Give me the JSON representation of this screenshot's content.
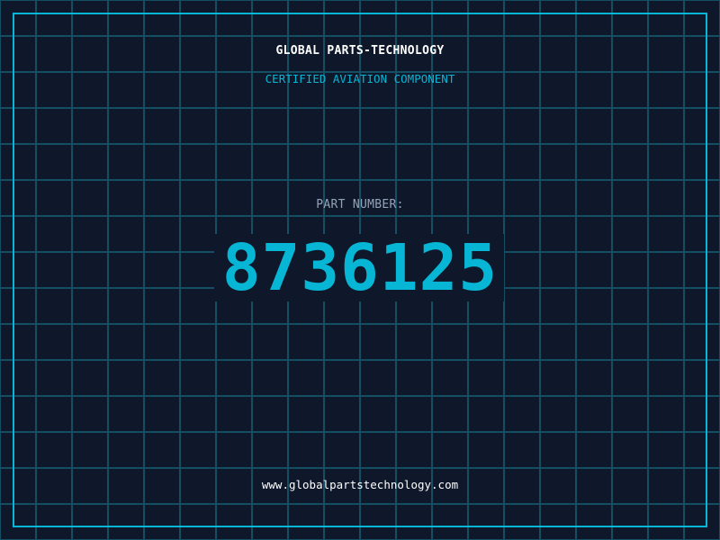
{
  "header": {
    "title": "GLOBAL PARTS-TECHNOLOGY",
    "subtitle": "CERTIFIED AVIATION COMPONENT"
  },
  "part": {
    "label": "PART NUMBER:",
    "number": "8736125"
  },
  "footer": {
    "url": "www.globalpartstechnology.com"
  },
  "colors": {
    "background": "#0f172a",
    "accent": "#06b6d4",
    "grid": "#164e63",
    "label": "#94a3b8"
  }
}
